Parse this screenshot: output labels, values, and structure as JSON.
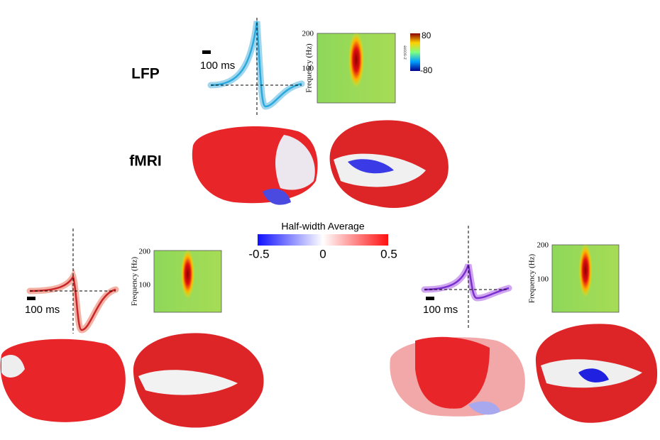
{
  "labels": {
    "lfp": "LFP",
    "fmri": "fMRI"
  },
  "panels": [
    {
      "scale_bar": "100 ms",
      "spectrogram": {
        "y_label": "Frequency (Hz)",
        "yticks": [
          "200",
          "100"
        ]
      }
    },
    {
      "scale_bar": "100 ms",
      "spectrogram": {
        "y_label": "Frequency (Hz)",
        "yticks": [
          "200",
          "100"
        ]
      }
    },
    {
      "scale_bar": "100 ms",
      "spectrogram": {
        "y_label": "Frequency (Hz)",
        "yticks": [
          "200",
          "100"
        ]
      }
    }
  ],
  "zscore_colorbar": {
    "label": "z-score",
    "max": "80",
    "min": "-80"
  },
  "halfwidth_colorbar": {
    "title": "Half-width Average",
    "ticks": [
      "-0.5",
      "0",
      "0.5"
    ]
  }
}
